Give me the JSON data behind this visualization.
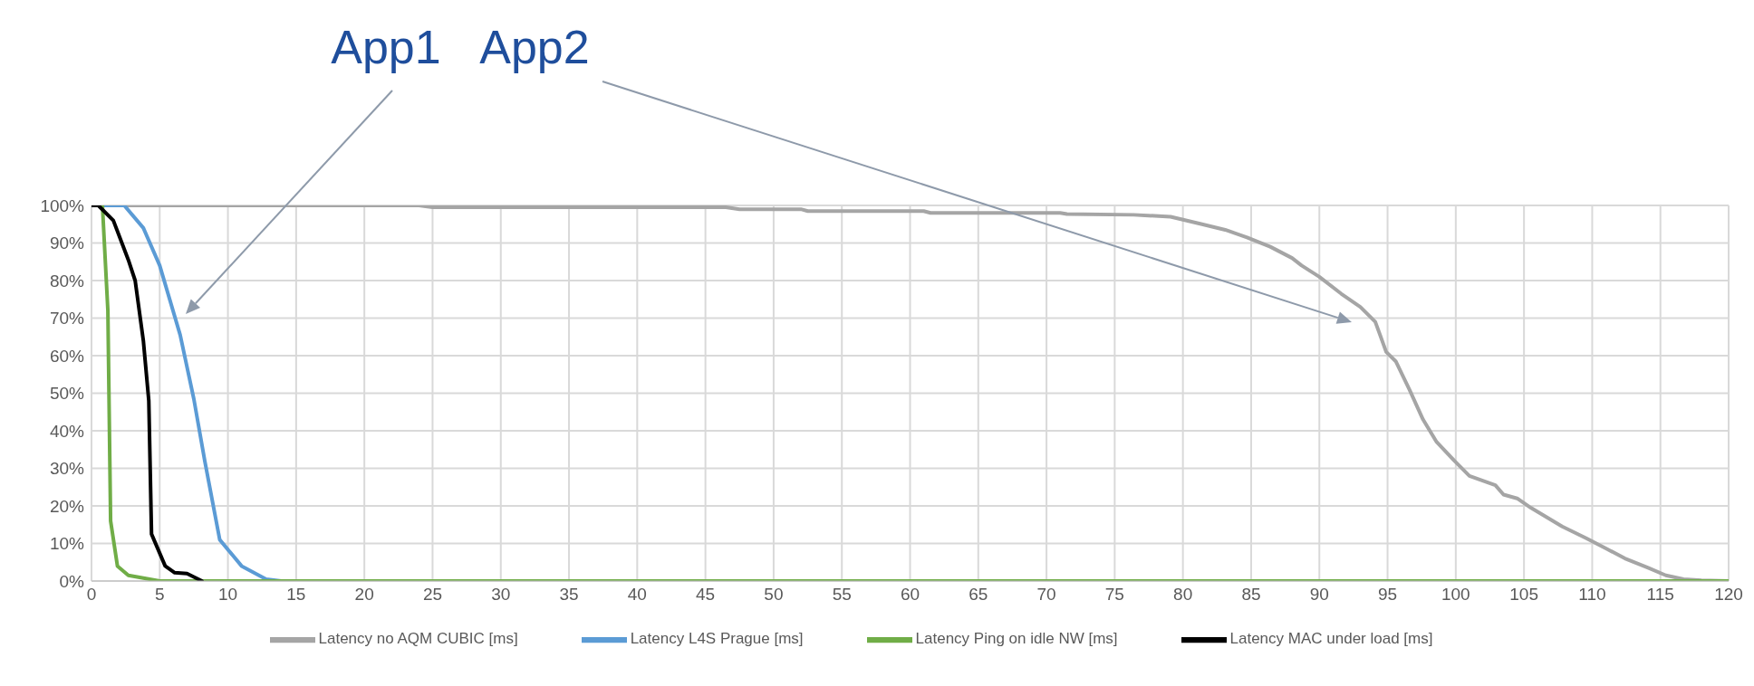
{
  "chart_data": {
    "type": "line",
    "xlim": [
      0,
      120
    ],
    "xticks": [
      0,
      5,
      10,
      15,
      20,
      25,
      30,
      35,
      40,
      45,
      50,
      55,
      60,
      65,
      70,
      75,
      80,
      85,
      90,
      95,
      100,
      105,
      110,
      115,
      120
    ],
    "ylim": [
      0,
      100
    ],
    "yticks": [
      {
        "value": 0,
        "label": "0%"
      },
      {
        "value": 10,
        "label": "10%"
      },
      {
        "value": 20,
        "label": "20%"
      },
      {
        "value": 30,
        "label": "30%"
      },
      {
        "value": 40,
        "label": "40%"
      },
      {
        "value": 50,
        "label": "50%"
      },
      {
        "value": 60,
        "label": "60%"
      },
      {
        "value": 70,
        "label": "70%"
      },
      {
        "value": 80,
        "label": "80%"
      },
      {
        "value": 90,
        "label": "90%"
      },
      {
        "value": 100,
        "label": "100%"
      }
    ],
    "grid": true,
    "legend": "bottom",
    "line_style": "solid",
    "annotations": [
      "App1",
      "App2"
    ],
    "series": [
      {
        "name": "Latency no AQM CUBIC [ms]",
        "color": "#a5a5a5",
        "x": [
          0,
          24,
          25,
          46.5,
          47.5,
          52,
          52.5,
          61,
          61.5,
          71,
          71.5,
          76.4,
          79.1,
          81.4,
          83.1,
          84.7,
          86.4,
          88,
          88.7,
          90,
          91.6,
          93,
          94.1,
          94.9,
          95.6,
          96.6,
          97.6,
          98.6,
          99.9,
          101,
          102.9,
          103.5,
          104.5,
          105.5,
          107.8,
          109.5,
          111.1,
          112.4,
          114.1,
          115.4,
          116.7,
          118,
          120
        ],
        "values": [
          100,
          100,
          99.5,
          99.5,
          99,
          99,
          98.5,
          98.5,
          98,
          98,
          97.7,
          97.5,
          97,
          95,
          93.5,
          91.5,
          89,
          86,
          84,
          81,
          76.5,
          73,
          69,
          61,
          58.5,
          51,
          43,
          37,
          32,
          28,
          25.5,
          23,
          22,
          19.5,
          14.5,
          11.5,
          8.5,
          6,
          3.5,
          1.5,
          0.5,
          0.2,
          0
        ]
      },
      {
        "name": "Latency L4S Prague [ms]",
        "color": "#5b9bd5",
        "x": [
          0,
          2.4,
          3.8,
          5,
          6.5,
          7.5,
          8.3,
          9.4,
          11,
          12.8,
          13.9
        ],
        "values": [
          100,
          100,
          94,
          84,
          65.5,
          48.5,
          32,
          11,
          4,
          0.5,
          0
        ]
      },
      {
        "name": "Latency Ping on idle NW [ms]",
        "color": "#70ad47",
        "x": [
          0,
          0.8,
          1.2,
          1.4,
          1.9,
          2.7,
          5,
          120
        ],
        "values": [
          100,
          100,
          72,
          16,
          4,
          1.5,
          0,
          0
        ]
      },
      {
        "name": "Latency MAC under load [ms]",
        "color": "#000000",
        "x": [
          0,
          0.5,
          1.6,
          2.7,
          3.2,
          3.8,
          4.2,
          4.4,
          5.4,
          6.1,
          7,
          8.1
        ],
        "values": [
          100,
          100,
          96,
          85.5,
          80,
          64,
          48,
          12.5,
          4,
          2.2,
          2,
          0
        ]
      }
    ]
  }
}
